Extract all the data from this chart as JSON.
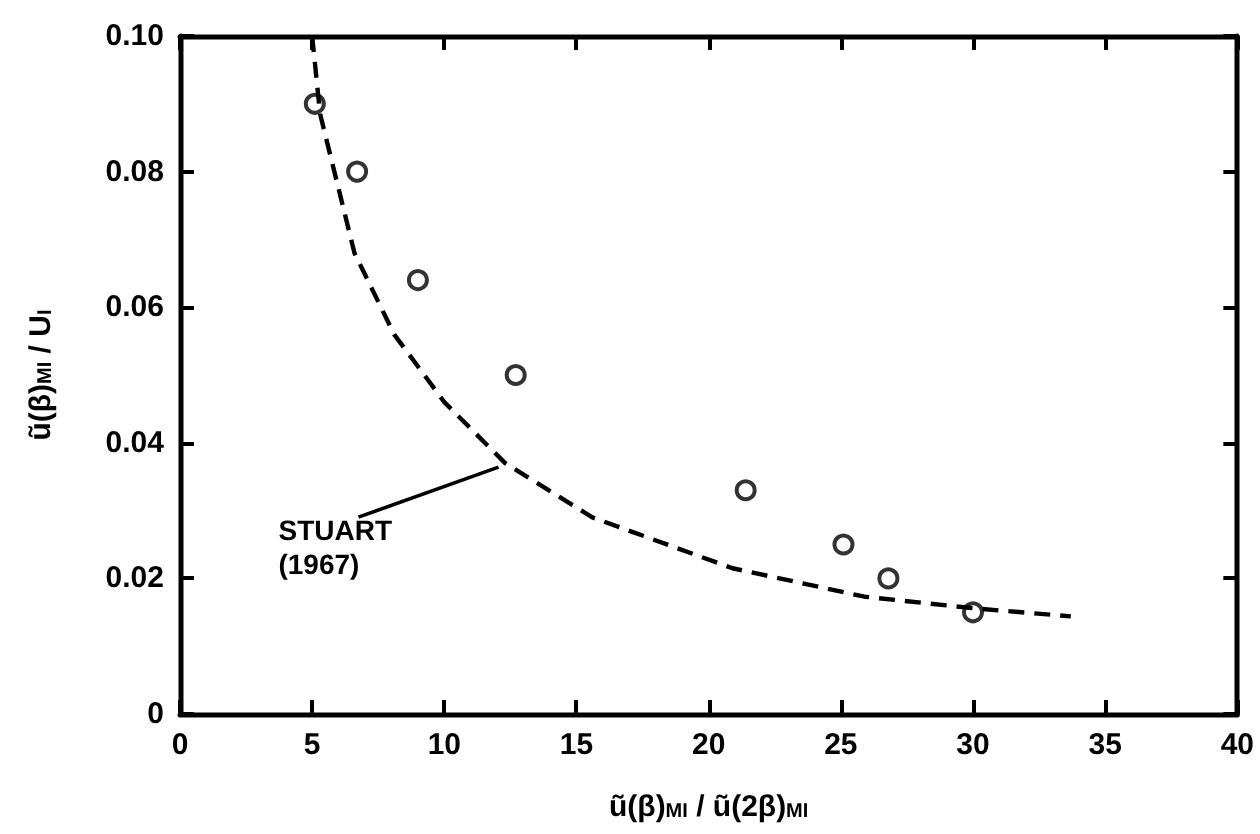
{
  "chart_data": {
    "type": "scatter",
    "xlabel": "ũ(β)$_{MI}$ / ũ(2β)$_{MI}$",
    "ylabel": "ũ(β)$_{MI}$ / U$_{I}$",
    "xlim": [
      0,
      40
    ],
    "xticks": [
      0,
      5,
      10,
      15,
      20,
      25,
      30,
      35,
      40
    ],
    "ylim": [
      0,
      0.1
    ],
    "yticks": [
      0,
      0.02,
      0.04,
      0.06,
      0.08,
      {
        "value": 0.1,
        "label": "0.10"
      }
    ],
    "marker": "circle",
    "series": [
      {
        "color": "#000000",
        "x": [
          5.1,
          6.7,
          9.0,
          12.7,
          21.4,
          25.1,
          26.8,
          30.0
        ],
        "values": [
          0.09,
          0.08,
          0.064,
          0.05,
          0.033,
          0.025,
          0.02,
          0.015
        ]
      },
      {
        "type": "line",
        "color": "#000000",
        "marker": "none",
        "line_style": "dashed",
        "x": [
          5.0,
          5.3,
          6.6,
          8.1,
          10.0,
          12.3,
          15.6,
          20.9,
          25.9,
          30.0,
          33.7
        ],
        "values": [
          0.1,
          0.0885,
          0.068,
          0.056,
          0.046,
          0.037,
          0.029,
          0.0215,
          0.0173,
          0.0156,
          0.0144
        ]
      }
    ],
    "annotations": [
      {
        "text": "STUART\n(1967)",
        "x": 12.2,
        "y": 0.037
      }
    ]
  }
}
